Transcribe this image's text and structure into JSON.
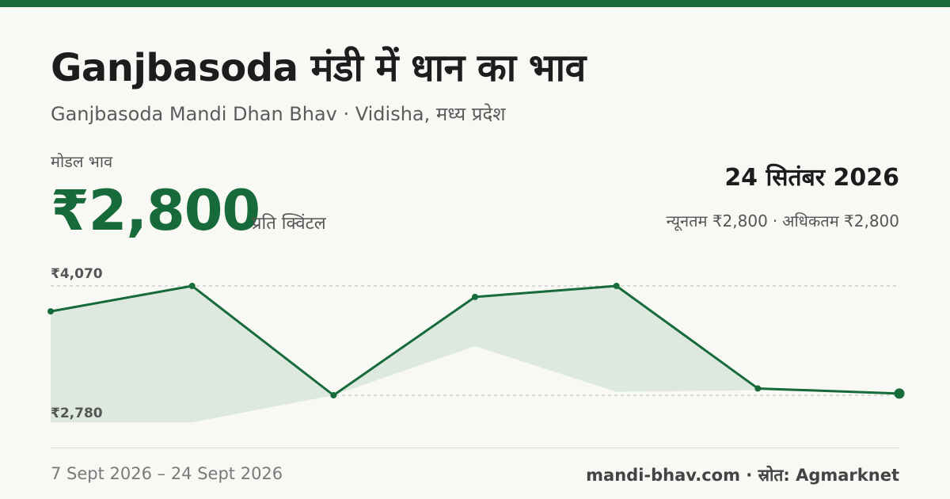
{
  "header": {
    "title": "Ganjbasoda मंडी में धान का भाव",
    "subtitle": "Ganjbasoda Mandi Dhan Bhav · Vidisha, मध्य प्रदेश"
  },
  "price": {
    "label": "मोडल भाव",
    "value": "₹2,800",
    "unit": "प्रति क्विंटल"
  },
  "summary": {
    "date": "24 सितंबर 2026",
    "min": "न्यूनतम ₹2,800",
    "separator": "·",
    "max": "अधिकतम ₹2,800"
  },
  "footer": {
    "date_range": "7 Sept 2026 – 24 Sept 2026",
    "source": "mandi-bhav.com · स्रोत: Agmarknet"
  },
  "colors": {
    "accent": "#176b3a",
    "band": "#dde8df",
    "background": "#f8f9f5"
  },
  "chart_data": {
    "type": "line",
    "tick_labels": [
      "₹4,070",
      "₹2,780"
    ],
    "ylim": [
      2780,
      4070
    ],
    "series": [
      {
        "values": [
          3770,
          4070,
          2780,
          3940,
          4070,
          2860,
          2800
        ]
      }
    ],
    "band": {
      "upper": [
        3770,
        4070,
        2780,
        3940,
        4070,
        2860,
        2800
      ],
      "lower": [
        2460,
        2460,
        2780,
        3360,
        2820,
        2840,
        2800
      ]
    },
    "grid": true,
    "legend": "none"
  }
}
